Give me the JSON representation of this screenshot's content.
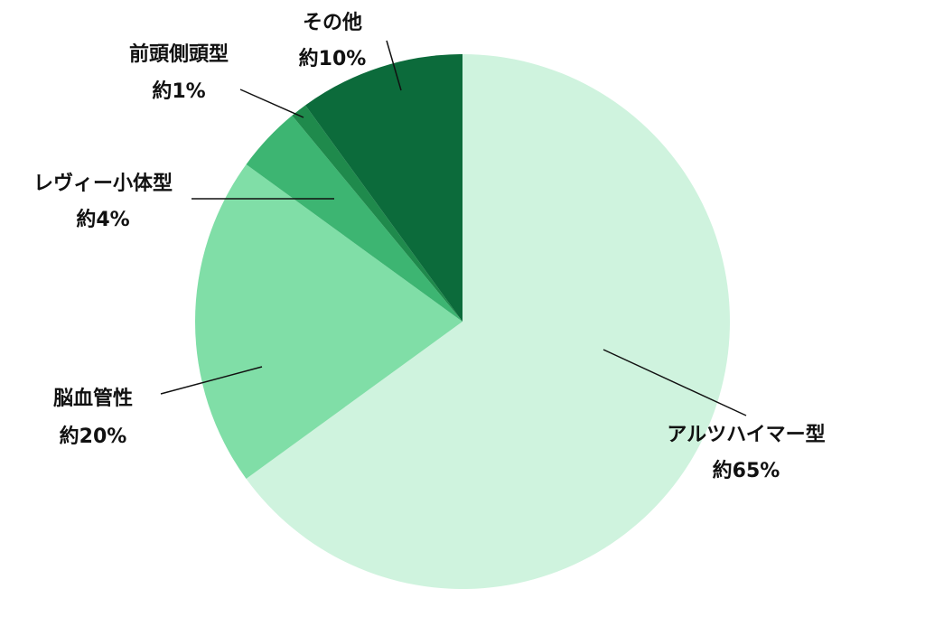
{
  "chart_data": {
    "type": "pie",
    "title": "",
    "start_angle_deg": 0,
    "direction": "clockwise",
    "slices": [
      {
        "name": "アルツハイマー型",
        "label": "約65%",
        "value": 65,
        "color": "#cff3de"
      },
      {
        "name": "脳血管性",
        "label": "約20%",
        "value": 20,
        "color": "#80dea7"
      },
      {
        "name": "レヴィー小体型",
        "label": "約4%",
        "value": 4,
        "color": "#3db572"
      },
      {
        "name": "前頭側頭型",
        "label": "約1%",
        "value": 1,
        "color": "#1f8a4c"
      },
      {
        "name": "その他",
        "label": "約10%",
        "value": 10,
        "color": "#0c6b3b"
      }
    ]
  }
}
